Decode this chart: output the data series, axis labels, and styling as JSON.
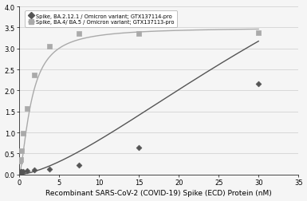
{
  "title": "",
  "xlabel": "Recombinant SARS-CoV-2 (COVID-19) Spike (ECD) Protein (nM)",
  "ylabel": "",
  "xlim": [
    0,
    35
  ],
  "ylim": [
    0,
    4
  ],
  "yticks": [
    0,
    0.5,
    1.0,
    1.5,
    2.0,
    2.5,
    3.0,
    3.5,
    4.0
  ],
  "xticks": [
    0,
    5,
    10,
    15,
    20,
    25,
    30,
    35
  ],
  "series1": {
    "label": "Spike, BA.2.12.1 / Omicron variant; GTX137114-pro",
    "color": "#555555",
    "marker": "D",
    "x_data": [
      0.0586,
      0.117,
      0.234,
      0.469,
      0.938,
      1.875,
      3.75,
      7.5,
      15.0,
      30.0
    ],
    "y_data": [
      0.056,
      0.062,
      0.067,
      0.072,
      0.083,
      0.107,
      0.13,
      0.22,
      0.64,
      2.15
    ]
  },
  "series2": {
    "label": "Spike, BA.4/ BA.5 / Omicron variant; GTX137113-pro",
    "color": "#aaaaaa",
    "marker": "s",
    "x_data": [
      0.0586,
      0.117,
      0.234,
      0.469,
      0.938,
      1.875,
      3.75,
      7.5,
      15.0,
      30.0
    ],
    "y_data": [
      0.31,
      0.35,
      0.56,
      0.98,
      1.58,
      2.36,
      3.06,
      3.35,
      3.36,
      3.37
    ]
  },
  "background_color": "#f5f5f5",
  "grid_color": "#cccccc"
}
